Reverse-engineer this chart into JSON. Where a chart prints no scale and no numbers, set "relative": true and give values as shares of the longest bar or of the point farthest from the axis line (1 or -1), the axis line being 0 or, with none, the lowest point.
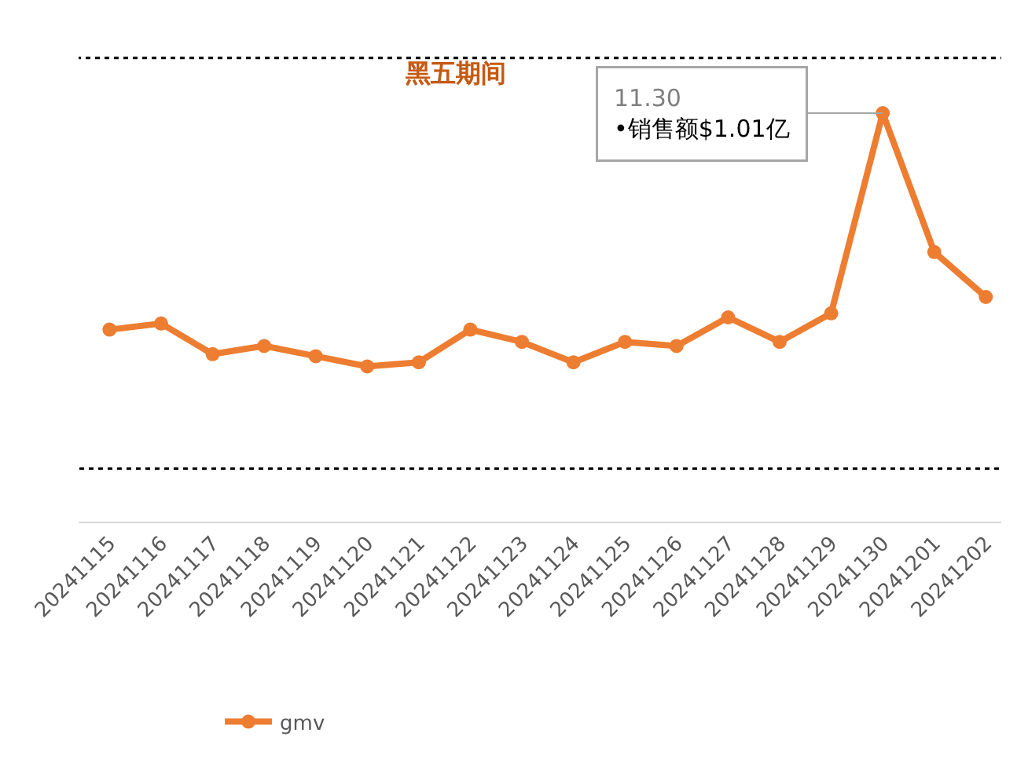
{
  "chart_data": {
    "type": "line",
    "relative": true,
    "categories": [
      "20241115",
      "20241116",
      "20241117",
      "20241118",
      "20241119",
      "20241120",
      "20241121",
      "20241122",
      "20241123",
      "20241124",
      "20241125",
      "20241126",
      "20241127",
      "20241128",
      "20241129",
      "20241130",
      "20241201",
      "20241202"
    ],
    "series": [
      {
        "name": "gmv",
        "color": "#ed7d31",
        "values": [
          0.47,
          0.485,
          0.41,
          0.43,
          0.405,
          0.38,
          0.39,
          0.47,
          0.44,
          0.39,
          0.44,
          0.43,
          0.5,
          0.44,
          0.51,
          1,
          0.66,
          0.55
        ]
      }
    ],
    "marker": "circle",
    "line_style": "solid",
    "legend": "bottom left",
    "bands": [
      {
        "axis": "x",
        "from": "20241115",
        "to": "20241202",
        "label": "黑五期间"
      }
    ],
    "annotations": [
      {
        "text": "11.30\n•销售额$1.01亿",
        "x": "20241130",
        "y": 1
      }
    ]
  }
}
